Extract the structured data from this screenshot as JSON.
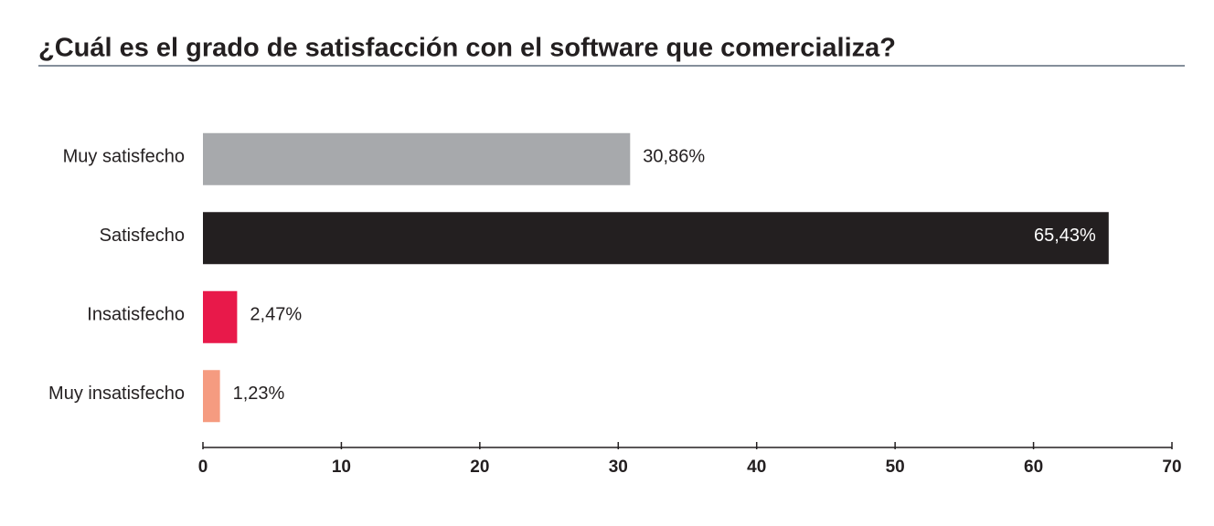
{
  "chart_data": {
    "type": "hbar",
    "title": "¿Cuál es el grado de satisfacción con el software que comercializa?",
    "categories": [
      "Muy satisfecho",
      "Satisfecho",
      "Insatisfecho",
      "Muy insatisfecho"
    ],
    "values": [
      30.86,
      65.43,
      2.47,
      1.23
    ],
    "value_labels": [
      "30,86%",
      "65,43%",
      "2,47%",
      "1,23%"
    ],
    "colors": [
      "#a7a9ac",
      "#231f20",
      "#e8194a",
      "#f59b80"
    ],
    "xlim": [
      0,
      70
    ],
    "xticks": [
      0,
      10,
      20,
      30,
      40,
      50,
      60,
      70
    ]
  }
}
